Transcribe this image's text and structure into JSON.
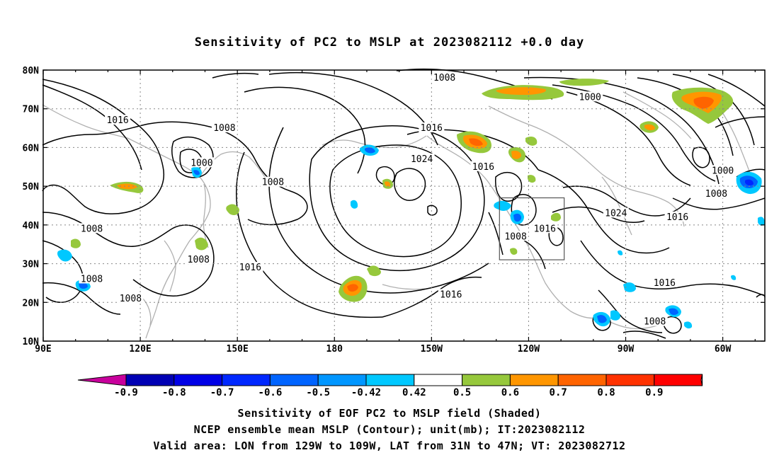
{
  "title": "Sensitivity of PC2 to MSLP at 2023082112 +0.0 day",
  "map": {
    "lon_labels": [
      "90E",
      "120E",
      "150E",
      "180",
      "150W",
      "120W",
      "90W",
      "60W"
    ],
    "lat_labels": [
      "80N",
      "70N",
      "60N",
      "50N",
      "40N",
      "30N",
      "20N",
      "10N"
    ],
    "lon_values": [
      90,
      120,
      150,
      180,
      210,
      240,
      270,
      300
    ],
    "lat_values": [
      80,
      70,
      60,
      50,
      40,
      30,
      20,
      10
    ],
    "lon_range": [
      90,
      313
    ],
    "lat_range": [
      10,
      80
    ],
    "valid_box": {
      "lon": [
        231,
        251
      ],
      "lat": [
        31,
        47
      ]
    },
    "contour_labels": [
      {
        "text": "1008",
        "lon": 214,
        "lat": 78
      },
      {
        "text": "1000",
        "lon": 259,
        "lat": 73
      },
      {
        "text": "1016",
        "lon": 113,
        "lat": 67
      },
      {
        "text": "1008",
        "lon": 146,
        "lat": 65
      },
      {
        "text": "1016",
        "lon": 210,
        "lat": 65
      },
      {
        "text": "1024",
        "lon": 207,
        "lat": 57
      },
      {
        "text": "1016",
        "lon": 226,
        "lat": 55
      },
      {
        "text": "1000",
        "lon": 139,
        "lat": 56
      },
      {
        "text": "1008",
        "lon": 161,
        "lat": 51
      },
      {
        "text": "1000",
        "lon": 300,
        "lat": 54
      },
      {
        "text": "1008",
        "lon": 298,
        "lat": 48
      },
      {
        "text": "1024",
        "lon": 267,
        "lat": 43
      },
      {
        "text": "1016",
        "lon": 286,
        "lat": 42
      },
      {
        "text": "1016",
        "lon": 245,
        "lat": 39
      },
      {
        "text": "1008",
        "lon": 236,
        "lat": 37
      },
      {
        "text": "1008",
        "lon": 105,
        "lat": 39
      },
      {
        "text": "1008",
        "lon": 138,
        "lat": 31
      },
      {
        "text": "1016",
        "lon": 154,
        "lat": 29
      },
      {
        "text": "1008",
        "lon": 105,
        "lat": 26
      },
      {
        "text": "1008",
        "lon": 117,
        "lat": 21
      },
      {
        "text": "1016",
        "lon": 216,
        "lat": 22
      },
      {
        "text": "1016",
        "lon": 282,
        "lat": 25
      },
      {
        "text": "1008",
        "lon": 279,
        "lat": 15
      }
    ]
  },
  "colorbar": {
    "levels": [
      "-0.9",
      "-0.8",
      "-0.7",
      "-0.6",
      "-0.5",
      "-0.42",
      "0.42",
      "0.5",
      "0.6",
      "0.7",
      "0.8",
      "0.9"
    ],
    "colors": [
      "#c8009c",
      "#0000b4",
      "#0000e6",
      "#0028ff",
      "#0064ff",
      "#0096ff",
      "#00c8ff",
      "#ffffff",
      "#96c83c",
      "#ff9600",
      "#ff6400",
      "#ff3200",
      "#ff0000",
      "#ff96c8"
    ]
  },
  "footer": {
    "line1": "Sensitivity of EOF PC2 to MSLP field (Shaded)",
    "line2": "NCEP ensemble mean MSLP (Contour); unit(mb); IT:2023082112",
    "line3": "Valid area: LON from 129W to 109W, LAT from 31N to 47N; VT: 2023082712"
  }
}
